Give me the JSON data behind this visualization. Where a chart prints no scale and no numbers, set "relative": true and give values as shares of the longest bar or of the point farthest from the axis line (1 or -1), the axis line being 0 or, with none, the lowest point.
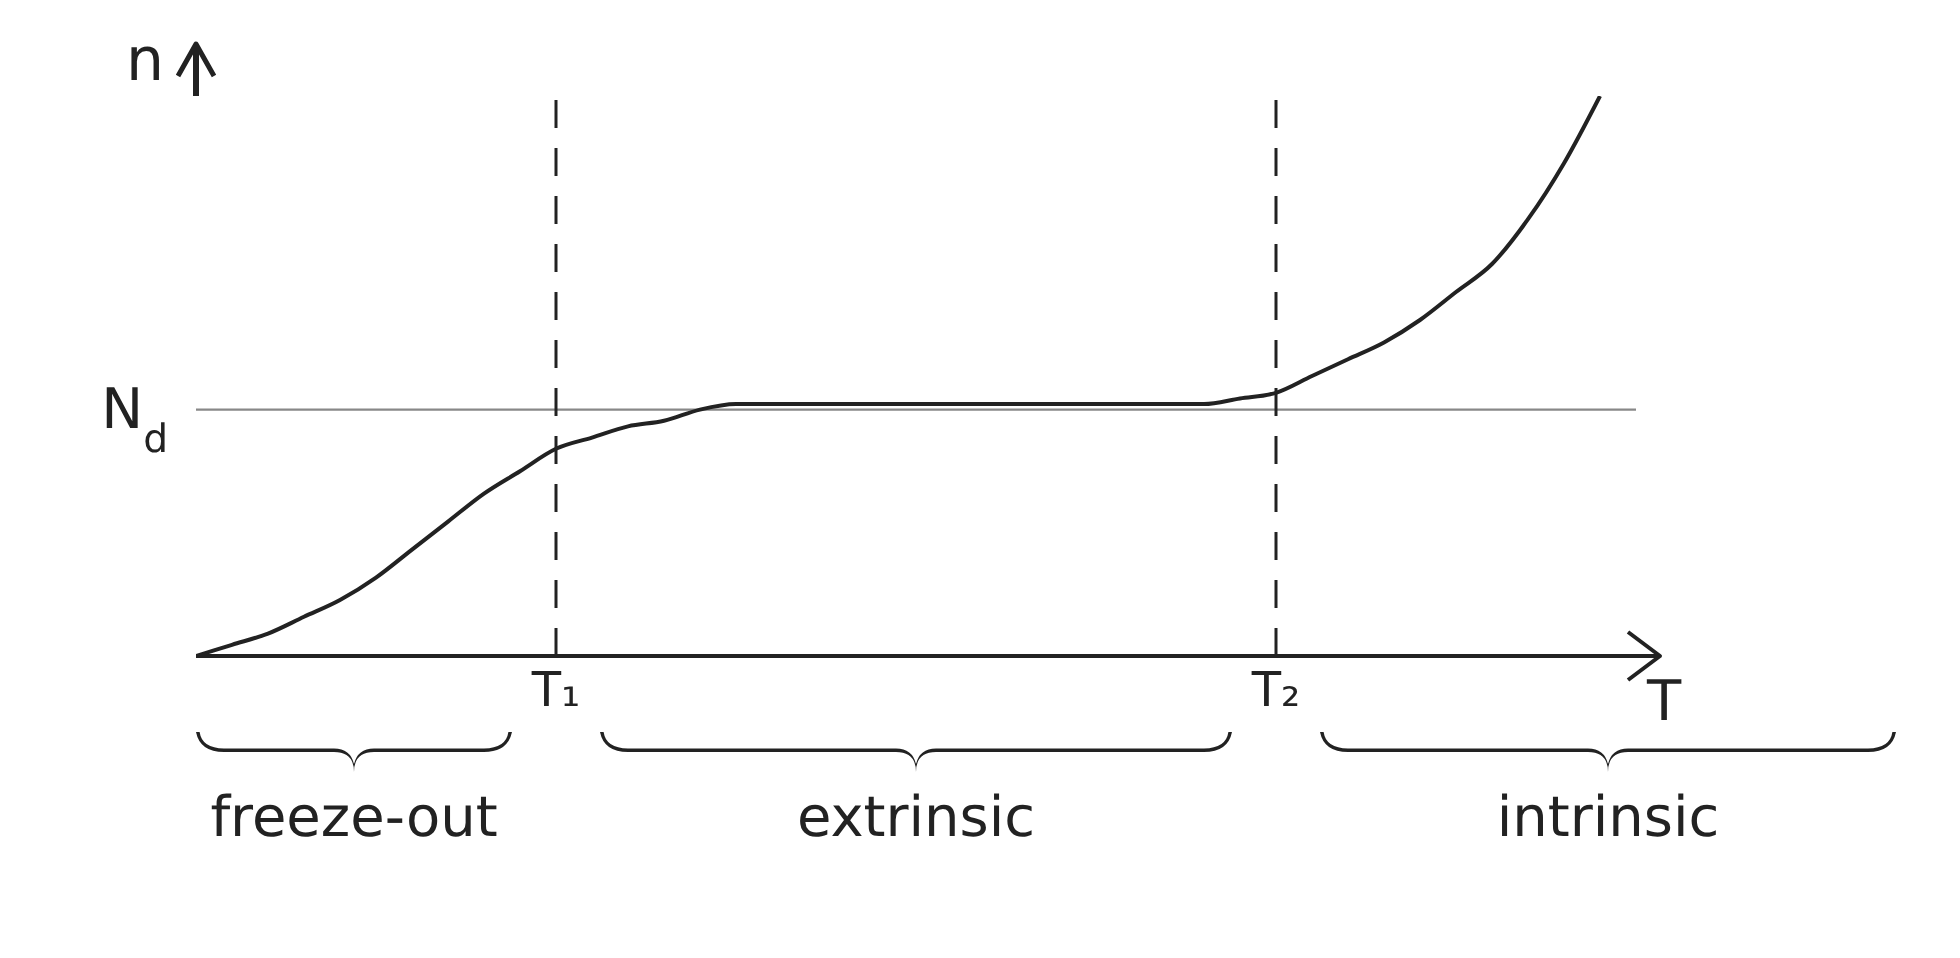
{
  "chart_data": {
    "type": "line",
    "relative": true,
    "xlabel": "T",
    "ylabel": "n",
    "categories": [
      null,
      null,
      null,
      null,
      null,
      null,
      null,
      null,
      null,
      null,
      "T₁",
      null,
      null,
      null,
      null,
      null,
      null,
      null,
      null,
      null,
      null,
      null,
      null,
      null,
      null,
      null,
      null,
      null,
      null,
      null,
      "T₂",
      null,
      null,
      null,
      null,
      null,
      null,
      null,
      null,
      null,
      null
    ],
    "series": [
      {
        "color": "#222222",
        "values": [
          0,
          0.02,
          0.04,
          0.07,
          0.1,
          0.14,
          0.19,
          0.24,
          0.29,
          0.33,
          0.37,
          0.39,
          0.41,
          0.42,
          0.44,
          0.45,
          0.45,
          0.45,
          0.45,
          0.45,
          0.45,
          0.45,
          0.45,
          0.45,
          0.45,
          0.45,
          0.45,
          0.45,
          0.45,
          0.46,
          0.47,
          0.5,
          0.53,
          0.56,
          0.6,
          0.65,
          0.7,
          0.78,
          0.88,
          1,
          null
        ]
      }
    ],
    "ref_lines": [
      {
        "axis": "y",
        "value": 0.44,
        "label": "N$_{d}$",
        "color": "#888888",
        "line_style": "solid"
      },
      {
        "axis": "x",
        "value": "T₁",
        "label": null,
        "color": "#222222",
        "line_style": "dashed"
      },
      {
        "axis": "x",
        "value": "T₂",
        "label": null,
        "color": "#222222",
        "line_style": "dashed"
      }
    ],
    "annotations": [
      "freeze-out",
      "extrinsic",
      "intrinsic"
    ]
  }
}
